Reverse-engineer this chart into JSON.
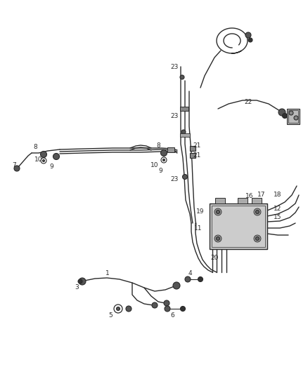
{
  "bg_color": "#ffffff",
  "line_color": "#2a2a2a",
  "text_color": "#2a2a2a",
  "label_fontsize": 6.5,
  "figsize": [
    4.38,
    5.33
  ],
  "dpi": 100
}
